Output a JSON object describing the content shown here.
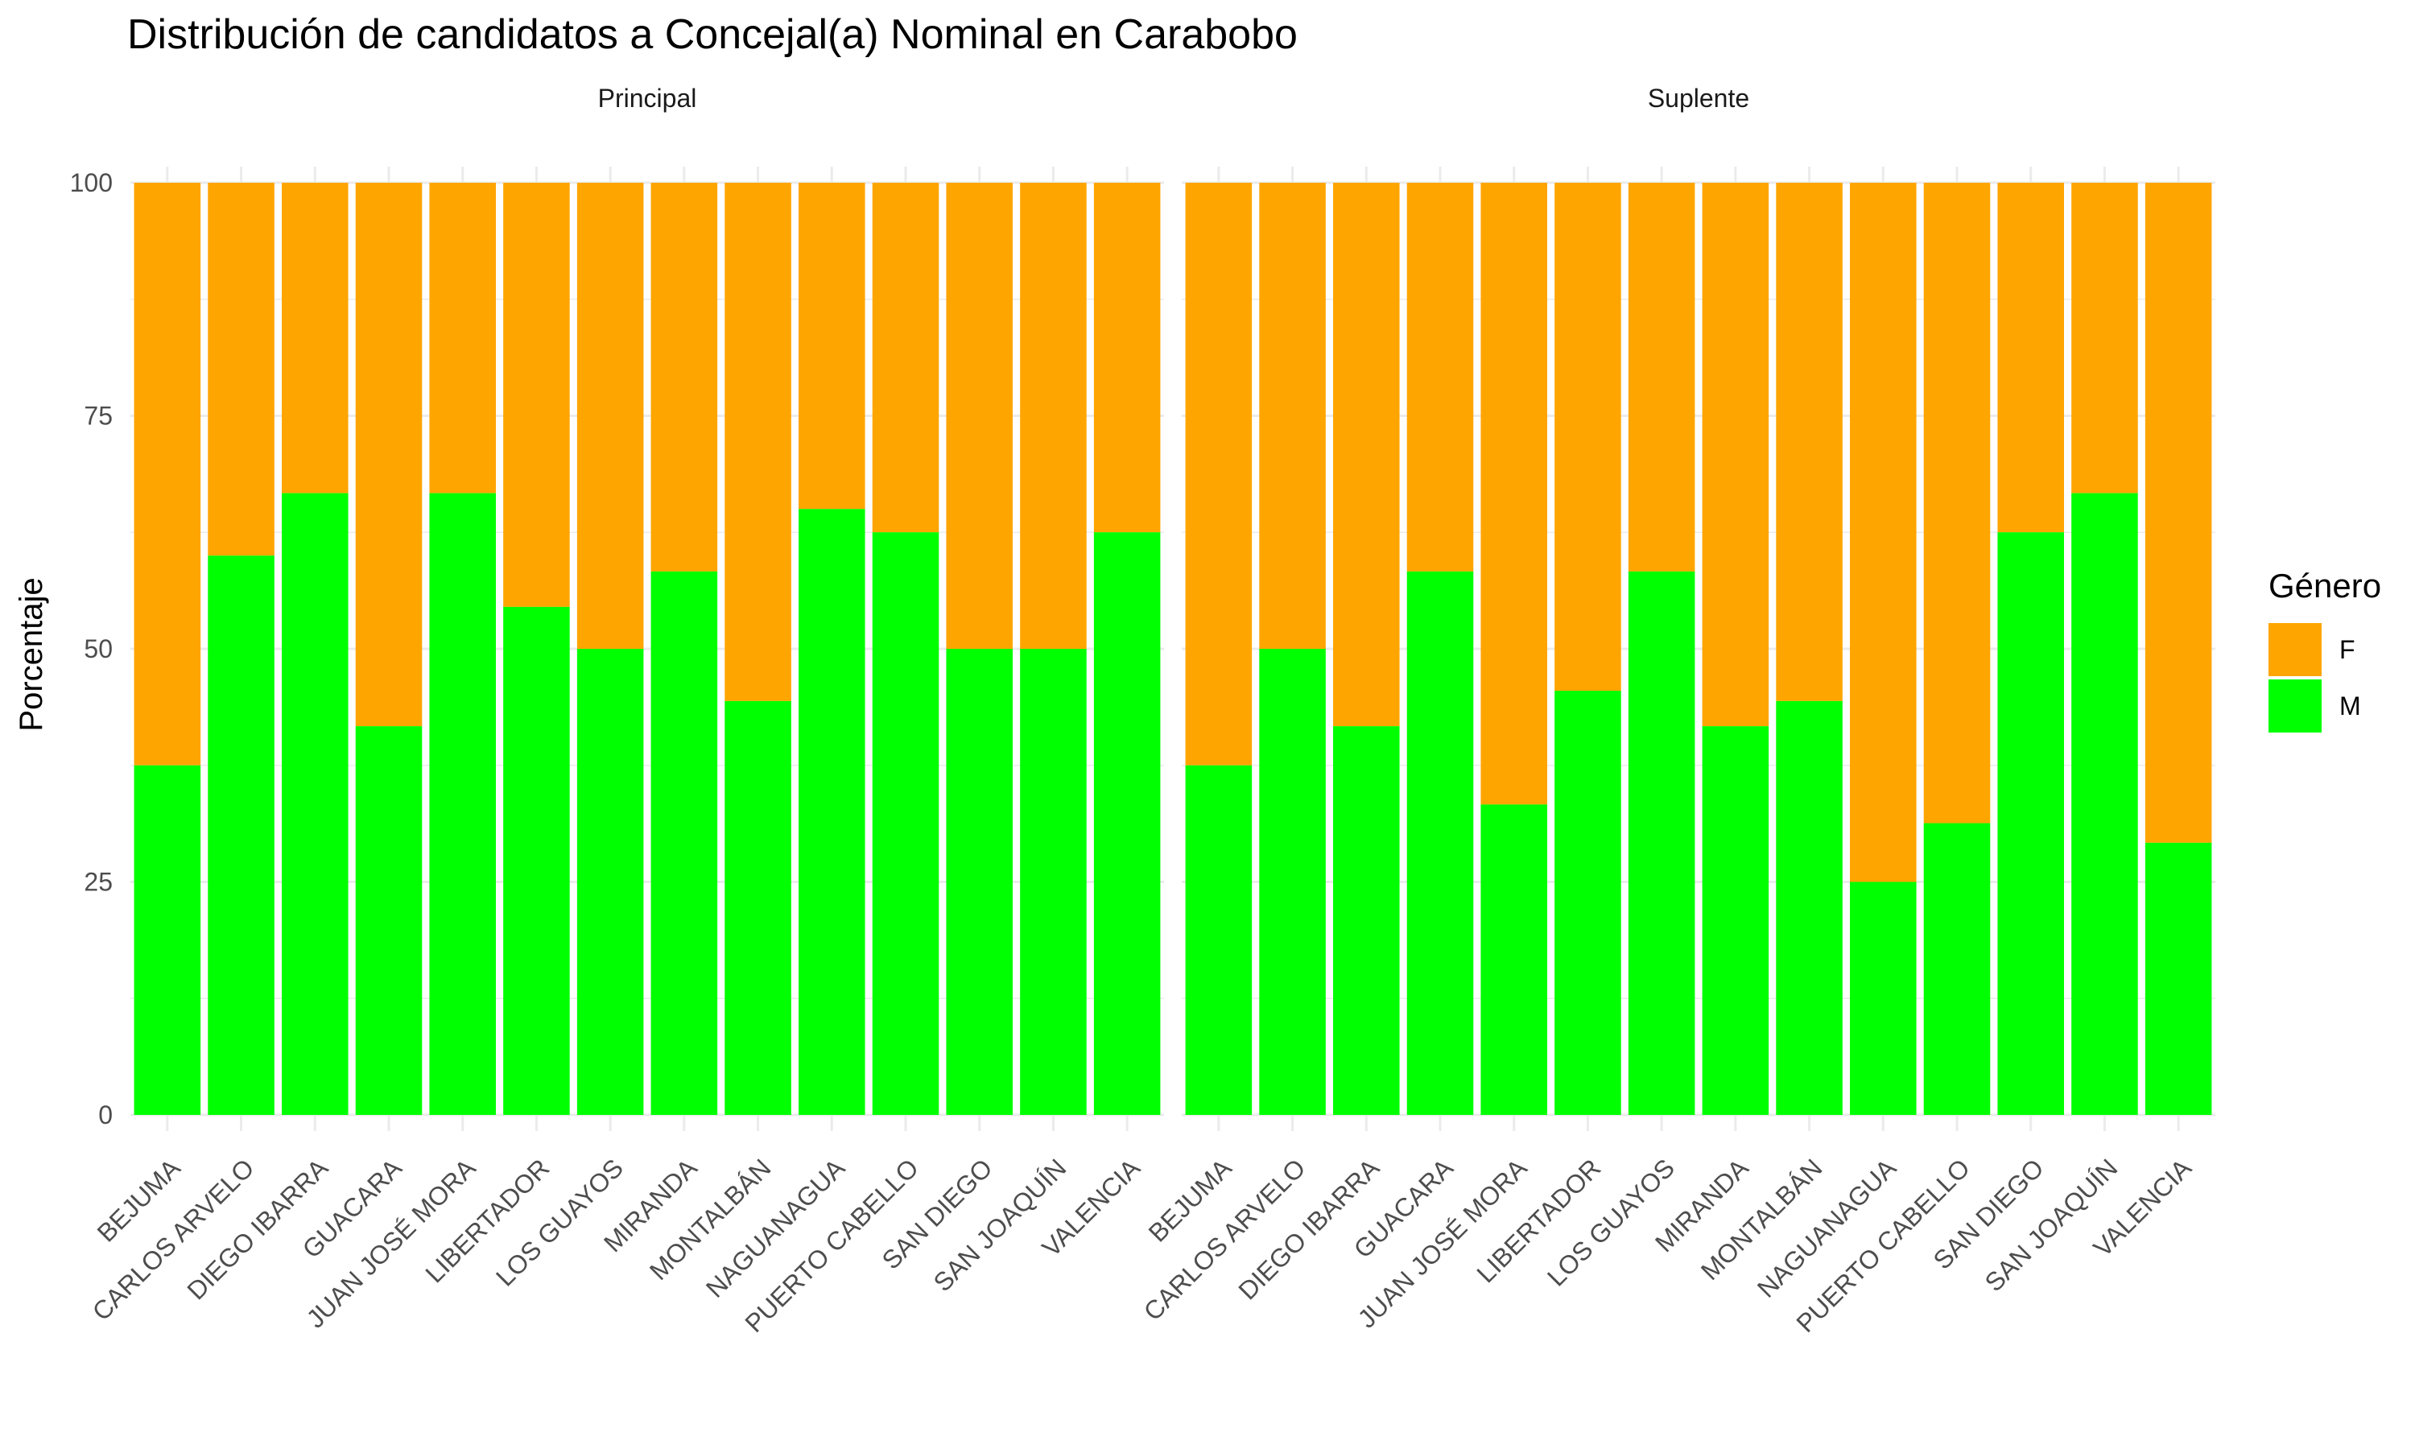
{
  "chart_data": {
    "type": "bar",
    "stacked": true,
    "title": "Distribución de candidatos a Concejal(a) Nominal en Carabobo",
    "ylabel": "Porcentaje",
    "xlabel": "",
    "ylim": [
      0,
      100
    ],
    "yticks": [
      0,
      25,
      50,
      75,
      100
    ],
    "grid": true,
    "legend": {
      "title": "Género",
      "position": "right",
      "items": [
        {
          "name": "F",
          "color": "#FFA500"
        },
        {
          "name": "M",
          "color": "#00FF00"
        }
      ]
    },
    "categories": [
      "BEJUMA",
      "CARLOS ARVELO",
      "DIEGO IBARRA",
      "GUACARA",
      "JUAN JOSÉ MORA",
      "LIBERTADOR",
      "LOS GUAYOS",
      "MIRANDA",
      "MONTALBÁN",
      "NAGUANAGUA",
      "PUERTO CABELLO",
      "SAN DIEGO",
      "SAN JOAQUÍN",
      "VALENCIA"
    ],
    "panels": [
      {
        "name": "Principal",
        "series": [
          {
            "name": "M",
            "values": [
              37.5,
              60,
              66.7,
              41.7,
              66.7,
              54.5,
              50,
              58.3,
              44.4,
              65,
              62.5,
              50,
              50,
              62.5
            ]
          },
          {
            "name": "F",
            "values": [
              62.5,
              40,
              33.3,
              58.3,
              33.3,
              45.5,
              50,
              41.7,
              55.6,
              35,
              37.5,
              50,
              50,
              37.5
            ]
          }
        ]
      },
      {
        "name": "Suplente",
        "series": [
          {
            "name": "M",
            "values": [
              37.5,
              50,
              41.7,
              58.3,
              33.3,
              45.5,
              58.3,
              41.7,
              44.4,
              25,
              31.3,
              62.5,
              66.7,
              29.2
            ]
          },
          {
            "name": "F",
            "values": [
              62.5,
              50,
              58.3,
              41.7,
              66.7,
              54.5,
              41.7,
              58.3,
              55.6,
              75,
              68.7,
              37.5,
              33.3,
              70.8
            ]
          }
        ]
      }
    ]
  }
}
